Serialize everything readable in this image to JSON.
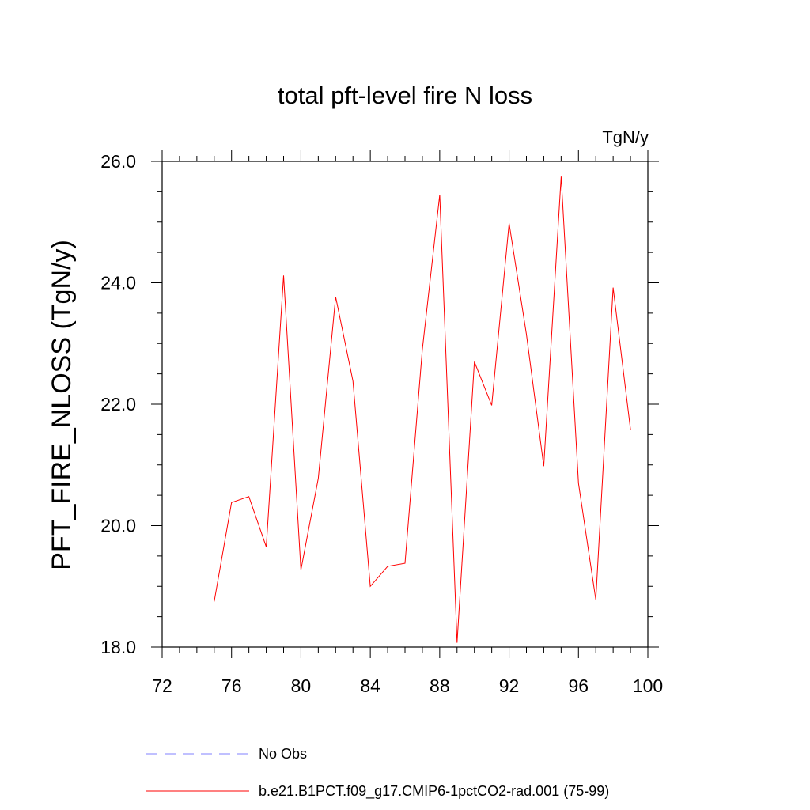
{
  "chart_data": {
    "type": "line",
    "title": "total pft-level fire N loss",
    "units": "TgN/y",
    "ylabel": "PFT_FIRE_NLOSS  (TgN/y)",
    "xlabel": "",
    "xlim": [
      72,
      100
    ],
    "ylim": [
      18.0,
      26.0
    ],
    "xticks": [
      72,
      76,
      80,
      84,
      88,
      92,
      96,
      100
    ],
    "xtick_labels": [
      "72",
      "76",
      "80",
      "84",
      "88",
      "92",
      "96",
      "100"
    ],
    "yticks": [
      18.0,
      20.0,
      22.0,
      24.0,
      26.0
    ],
    "ytick_labels": [
      "18.0",
      "20.0",
      "22.0",
      "24.0",
      "26.0"
    ],
    "x_minor_step": 1,
    "y_minor_step": 0.5,
    "grid": false,
    "legend_position": "bottom",
    "series": [
      {
        "name": "No Obs",
        "color": "#8080ff",
        "dashed": true,
        "x": [],
        "y": []
      },
      {
        "name": "b.e21.B1PCT.f09_g17.CMIP6-1pctCO2-rad.001 (75-99)",
        "color": "#ff0000",
        "dashed": false,
        "x": [
          75,
          76,
          77,
          78,
          79,
          80,
          81,
          82,
          83,
          84,
          85,
          86,
          87,
          88,
          89,
          90,
          91,
          92,
          93,
          94,
          95,
          96,
          97,
          98,
          99
        ],
        "y": [
          18.75,
          20.38,
          20.48,
          19.65,
          24.12,
          19.27,
          20.78,
          23.77,
          22.38,
          19.0,
          19.33,
          19.38,
          22.9,
          25.45,
          18.07,
          22.7,
          21.98,
          24.98,
          23.15,
          20.98,
          25.75,
          20.7,
          18.78,
          23.92,
          21.58
        ]
      }
    ]
  }
}
